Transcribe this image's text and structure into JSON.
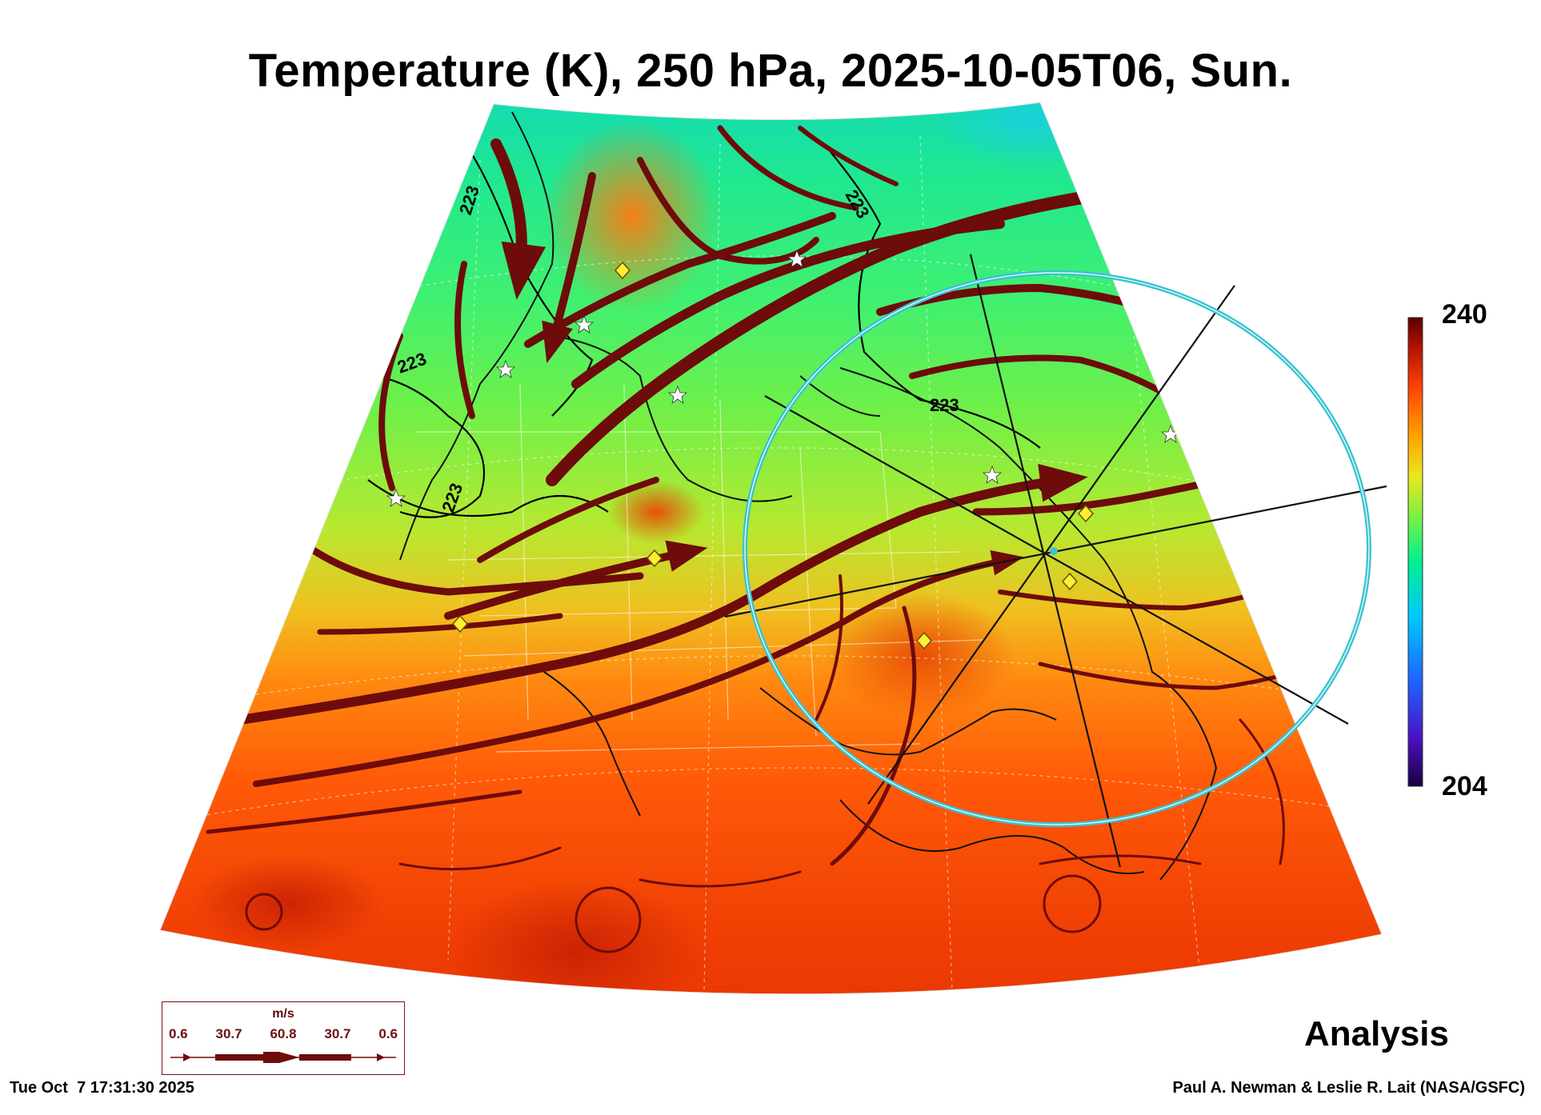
{
  "title": "Temperature (K), 250 hPa, 2025-10-05T06, Sun.",
  "colorbar": {
    "max_label": "240",
    "min_label": "204",
    "colors": [
      "#2a0050",
      "#3a1cc0",
      "#2050ff",
      "#00c8ff",
      "#00ff9a",
      "#80ff40",
      "#e8f020",
      "#ffa000",
      "#ff4400",
      "#c01000",
      "#6a0000"
    ]
  },
  "contours": [
    {
      "label": "223"
    },
    {
      "label": "223"
    },
    {
      "label": "223"
    },
    {
      "label": "223"
    },
    {
      "label": "223"
    }
  ],
  "legend": {
    "unit": "m/s",
    "values": [
      "0.6",
      "30.7",
      "60.8",
      "30.7",
      "0.6"
    ]
  },
  "product_label": "Analysis",
  "timestamp": "Tue Oct  7 17:31:30 2025",
  "credit": "Paul A. Newman & Leslie R. Lait (NASA/GSFC)",
  "colors": {
    "streamline": "#6e0b0b",
    "ring": "#39c3d3",
    "diamond": "#ffee33"
  }
}
